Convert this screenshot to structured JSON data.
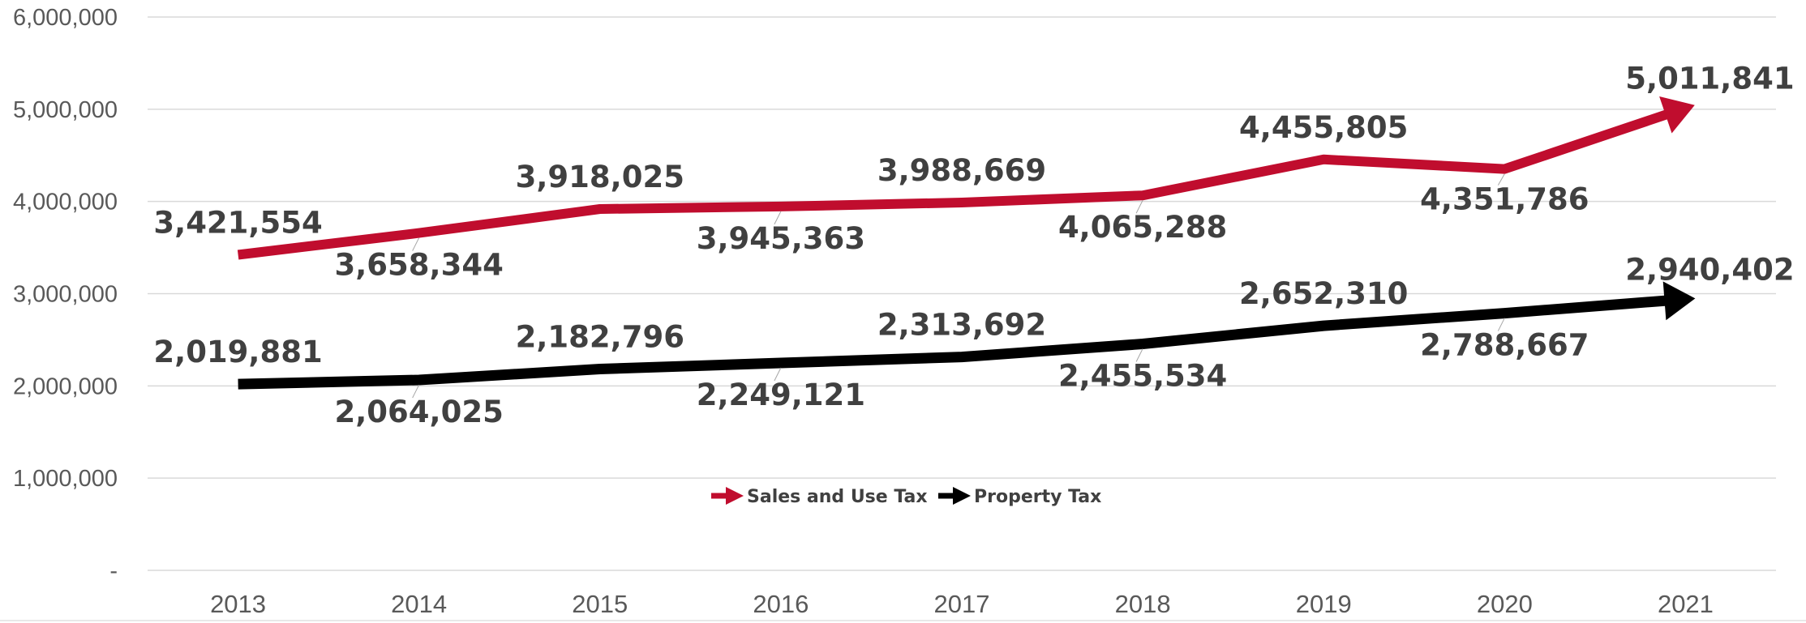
{
  "chart_data": {
    "type": "line",
    "categories": [
      "2013",
      "2014",
      "2015",
      "2016",
      "2017",
      "2018",
      "2019",
      "2020",
      "2021"
    ],
    "series": [
      {
        "name": "Sales and Use Tax",
        "color": "#c00d2e",
        "values": [
          3421554,
          3658344,
          3918025,
          3945363,
          3988669,
          4065288,
          4455805,
          4351786,
          5011841
        ],
        "labels": [
          "3,421,554",
          "3,658,344",
          "3,918,025",
          "3,945,363",
          "3,988,669",
          "4,065,288",
          "4,455,805",
          "4,351,786",
          "5,011,841"
        ]
      },
      {
        "name": "Property Tax",
        "color": "#000000",
        "values": [
          2019881,
          2064025,
          2182796,
          2249121,
          2313692,
          2455534,
          2652310,
          2788667,
          2940402
        ],
        "labels": [
          "2,019,881",
          "2,064,025",
          "2,182,796",
          "2,249,121",
          "2,313,692",
          "2,455,534",
          "2,652,310",
          "2,788,667",
          "2,940,402"
        ]
      }
    ],
    "yticks": [
      "-",
      "1,000,000",
      "2,000,000",
      "3,000,000",
      "4,000,000",
      "5,000,000",
      "6,000,000"
    ],
    "ylim": [
      0,
      6000000
    ],
    "grid": true,
    "legend_position": "bottom-center"
  }
}
